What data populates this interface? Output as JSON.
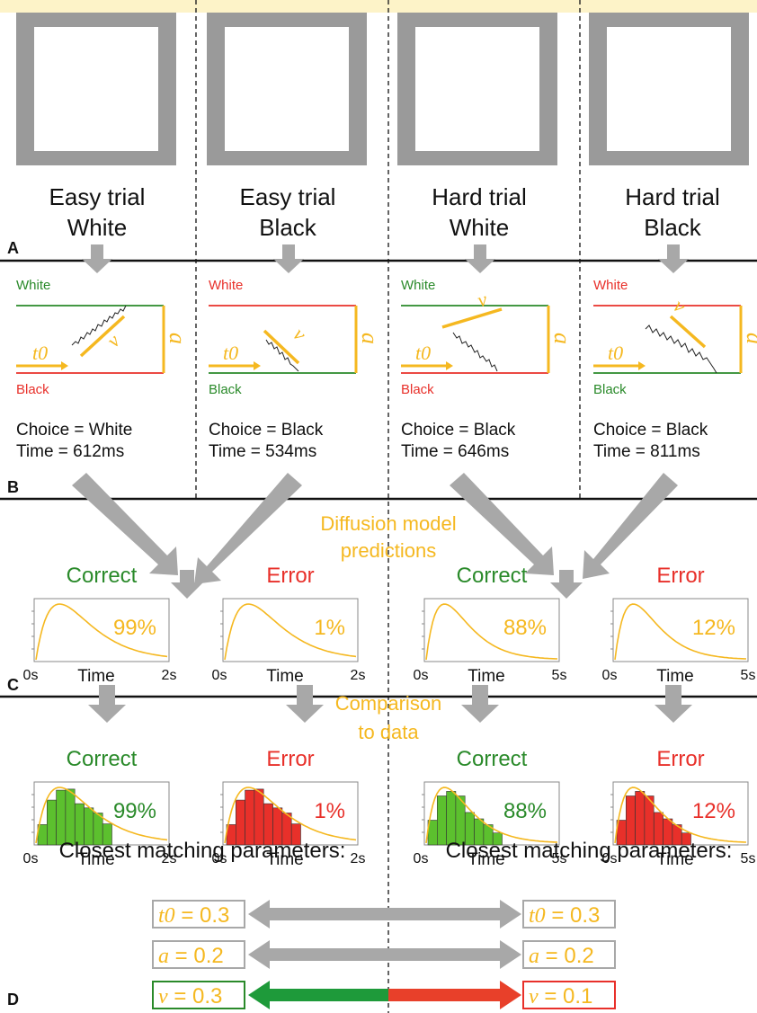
{
  "colors": {
    "green": "#2a8a2a",
    "red": "#e8302a",
    "orange": "#f5b820",
    "gray": "#a8a8a8",
    "dark_green_arrow": "#1e9a3a",
    "red_arrow": "#e8402a",
    "top_strip": "#fdf3c8"
  },
  "panel_a": {
    "label": "A",
    "trials": [
      {
        "line1": "Easy trial",
        "line2": "White"
      },
      {
        "line1": "Easy trial",
        "line2": "Black"
      },
      {
        "line1": "Hard trial",
        "line2": "White"
      },
      {
        "line1": "Hard trial",
        "line2": "Black"
      }
    ]
  },
  "panel_b": {
    "label": "B",
    "trials": [
      {
        "top": "White",
        "bottom": "Black",
        "choice": "Choice = White",
        "time": "Time = 612ms",
        "t0": "t0",
        "v": "v",
        "a": "a"
      },
      {
        "top": "White",
        "bottom": "Black",
        "choice": "Choice = Black",
        "time": "Time = 534ms",
        "t0": "t0",
        "v": "v",
        "a": "a"
      },
      {
        "top": "White",
        "bottom": "Black",
        "choice": "Choice = Black",
        "time": "Time = 646ms",
        "t0": "t0",
        "v": "v",
        "a": "a"
      },
      {
        "top": "White",
        "bottom": "Black",
        "choice": "Choice = Black",
        "time": "Time = 811ms",
        "t0": "t0",
        "v": "v",
        "a": "a"
      }
    ]
  },
  "panel_c": {
    "label": "C",
    "title_line1": "Diffusion model",
    "title_line2": "predictions",
    "plots": [
      {
        "heading": "Correct",
        "pct": "99%",
        "x0": "0s",
        "xlabel": "Time",
        "xmax": "2s"
      },
      {
        "heading": "Error",
        "pct": "1%",
        "x0": "0s",
        "xlabel": "Time",
        "xmax": "2s"
      },
      {
        "heading": "Correct",
        "pct": "88%",
        "x0": "0s",
        "xlabel": "Time",
        "xmax": "5s"
      },
      {
        "heading": "Error",
        "pct": "12%",
        "x0": "0s",
        "xlabel": "Time",
        "xmax": "5s"
      }
    ]
  },
  "panel_c2": {
    "title_line1": "Comparison",
    "title_line2": "to data",
    "plots": [
      {
        "heading": "Correct",
        "pct": "99%",
        "x0": "0s",
        "xlabel": "Time",
        "xmax": "2s"
      },
      {
        "heading": "Error",
        "pct": "1%",
        "x0": "0s",
        "xlabel": "Time",
        "xmax": "2s"
      },
      {
        "heading": "Correct",
        "pct": "88%",
        "x0": "0s",
        "xlabel": "Time",
        "xmax": "5s"
      },
      {
        "heading": "Error",
        "pct": "12%",
        "x0": "0s",
        "xlabel": "Time",
        "xmax": "5s"
      }
    ]
  },
  "panel_d": {
    "label": "D",
    "heading_left": "Closest matching parameters:",
    "heading_right": "Closest matching parameters:",
    "left": [
      {
        "name": "t0",
        "value": " = 0.3"
      },
      {
        "name": "a",
        "value": " = 0.2"
      },
      {
        "name": "v",
        "value": " = 0.3"
      }
    ],
    "right": [
      {
        "name": "t0",
        "value": " = 0.3"
      },
      {
        "name": "a",
        "value": " = 0.2"
      },
      {
        "name": "v",
        "value": " = 0.1"
      }
    ]
  }
}
